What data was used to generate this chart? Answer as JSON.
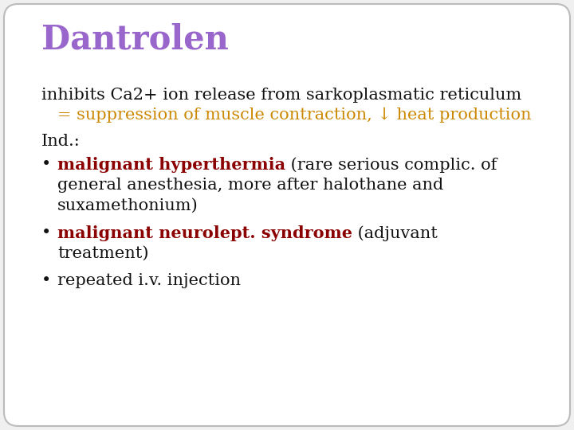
{
  "title": "Dantrolen",
  "title_color": "#9966cc",
  "title_fontsize": 30,
  "background_color": "#f0f0f0",
  "border_color": "#bbbbbb",
  "line1_normal": "inhibits Ca2+ ion release from sarkoplasmatic reticulum",
  "line2_orange": "   = suppression of muscle contraction, ↓ heat production",
  "line3_normal": "Ind.:",
  "bullet1_bold": "malignant hyperthermia",
  "bullet1_rest": " (rare serious complic. of",
  "bullet1_line2": "general anesthesia, more after halothane and",
  "bullet1_line3": "suxamethonium)",
  "bullet2_bold": "malignant neurolept. syndrome",
  "bullet2_rest": " (adjuvant",
  "bullet2_line2": "treatment)",
  "bullet3_normal": "repeated i.v. injection",
  "text_color_normal": "#111111",
  "text_color_orange": "#cc8800",
  "text_color_red": "#8b0000",
  "text_fontsize": 15,
  "bullet_symbol": "•",
  "fig_width": 7.2,
  "fig_height": 5.4,
  "dpi": 100
}
